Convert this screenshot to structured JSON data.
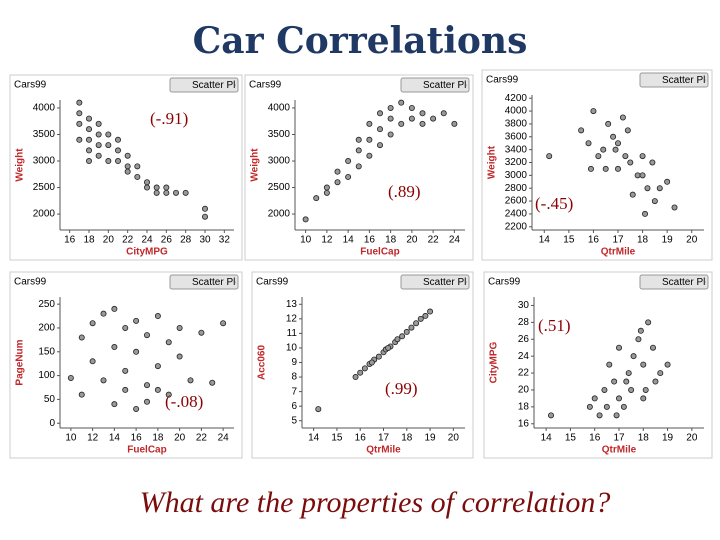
{
  "title": "Car Correlations",
  "question": "What are the properties of correlation?",
  "chart_data": [
    {
      "type": "scatter",
      "title": "Cars99",
      "control": "Scatter Plot",
      "xlabel": "CityMPG",
      "ylabel": "Weight",
      "annotation": "(-.91)",
      "x": [
        17,
        17,
        17,
        17,
        18,
        18,
        18,
        18,
        18,
        19,
        19,
        19,
        19,
        20,
        20,
        20,
        21,
        21,
        21,
        22,
        22,
        22,
        23,
        23,
        24,
        24,
        25,
        25,
        26,
        26,
        27,
        28,
        30,
        30
      ],
      "values": [
        4100,
        3900,
        3700,
        3400,
        3800,
        3600,
        3400,
        3200,
        3000,
        3700,
        3500,
        3300,
        3100,
        3500,
        3300,
        3000,
        3400,
        3200,
        3000,
        3100,
        2900,
        2800,
        2900,
        2700,
        2600,
        2500,
        2500,
        2400,
        2500,
        2400,
        2400,
        2400,
        2100,
        1950
      ],
      "xlim": [
        15,
        33
      ],
      "ylim": [
        1700,
        4150
      ],
      "xticks": [
        16,
        18,
        20,
        22,
        24,
        26,
        28,
        30,
        32
      ],
      "yticks": [
        2000,
        2500,
        3000,
        3500,
        4000
      ]
    },
    {
      "type": "scatter",
      "title": "Cars99",
      "control": "Scatter Plot",
      "xlabel": "FuelCap",
      "ylabel": "Weight",
      "annotation": "(.89)",
      "x": [
        10,
        11,
        12,
        12,
        13,
        13,
        14,
        14,
        15,
        15,
        15,
        16,
        16,
        16,
        17,
        17,
        17,
        18,
        18,
        18,
        19,
        19,
        20,
        20,
        21,
        21,
        22,
        23,
        24
      ],
      "values": [
        1900,
        2300,
        2500,
        2400,
        2600,
        2800,
        2700,
        3000,
        2900,
        3200,
        3400,
        3100,
        3400,
        3700,
        3300,
        3600,
        3900,
        3500,
        3800,
        4000,
        3700,
        4100,
        3800,
        4000,
        3900,
        3700,
        3800,
        3900,
        3700
      ],
      "xlim": [
        9,
        25
      ],
      "ylim": [
        1700,
        4150
      ],
      "xticks": [
        10,
        12,
        14,
        16,
        18,
        20,
        22,
        24
      ],
      "yticks": [
        2000,
        2500,
        3000,
        3500,
        4000
      ]
    },
    {
      "type": "scatter",
      "title": "Cars99",
      "control": "Scatter Plot",
      "xlabel": "QtrMile",
      "ylabel": "Weight",
      "annotation": "(-.45)",
      "x": [
        14.2,
        15.5,
        15.8,
        16.0,
        16.2,
        16.4,
        16.5,
        16.6,
        16.8,
        17.0,
        17.0,
        17.2,
        17.3,
        17.5,
        17.6,
        17.8,
        18.0,
        18.0,
        18.2,
        18.4,
        18.5,
        18.7,
        19.0,
        19.3,
        16.9,
        17.4,
        18.1,
        15.9
      ],
      "values": [
        3300,
        3700,
        3500,
        4000,
        3300,
        3400,
        3100,
        3800,
        3600,
        3500,
        3100,
        3900,
        3300,
        3200,
        2700,
        3000,
        3000,
        3300,
        2800,
        3200,
        2600,
        2800,
        2900,
        2500,
        3400,
        3700,
        2400,
        3100
      ],
      "xlim": [
        13.5,
        20.5
      ],
      "ylim": [
        2150,
        4250
      ],
      "xticks": [
        14,
        15,
        16,
        17,
        18,
        19,
        20
      ],
      "yticks": [
        2200,
        2400,
        2600,
        2800,
        3000,
        3200,
        3400,
        3600,
        3800,
        4000,
        4200
      ]
    },
    {
      "type": "scatter",
      "title": "Cars99",
      "control": "Scatter Plot",
      "xlabel": "FuelCap",
      "ylabel": "PageNum",
      "annotation": "(-.08)",
      "x": [
        10,
        11,
        11,
        12,
        12,
        13,
        13,
        14,
        14,
        14,
        15,
        15,
        15,
        16,
        16,
        16,
        17,
        17,
        17,
        18,
        18,
        18,
        19,
        19,
        20,
        20,
        21,
        22,
        23,
        24
      ],
      "values": [
        95,
        180,
        60,
        210,
        130,
        230,
        90,
        160,
        40,
        240,
        200,
        110,
        70,
        215,
        150,
        30,
        185,
        80,
        45,
        225,
        120,
        70,
        170,
        60,
        200,
        140,
        90,
        190,
        85,
        210
      ],
      "xlim": [
        9,
        25
      ],
      "ylim": [
        -10,
        265
      ],
      "xticks": [
        10,
        12,
        14,
        16,
        18,
        20,
        22,
        24
      ],
      "yticks": [
        0,
        50,
        100,
        150,
        200,
        250
      ]
    },
    {
      "type": "scatter",
      "title": "Cars99",
      "control": "Scatter Plot",
      "xlabel": "QtrMile",
      "ylabel": "Acc060",
      "annotation": "(.99)",
      "x": [
        14.2,
        15.8,
        16.0,
        16.2,
        16.4,
        16.6,
        16.8,
        17.0,
        17.1,
        17.3,
        17.5,
        17.6,
        17.8,
        18.0,
        18.2,
        18.4,
        18.6,
        18.8,
        19.0,
        16.5,
        17.2
      ],
      "values": [
        5.8,
        8.0,
        8.3,
        8.6,
        8.9,
        9.2,
        9.4,
        9.7,
        9.9,
        10.1,
        10.4,
        10.6,
        10.8,
        11.1,
        11.4,
        11.7,
        12.0,
        12.2,
        12.5,
        9.0,
        10.0
      ],
      "xlim": [
        13.5,
        20.5
      ],
      "ylim": [
        4.5,
        13.5
      ],
      "xticks": [
        14,
        15,
        16,
        17,
        18,
        19,
        20
      ],
      "yticks": [
        5,
        6,
        7,
        8,
        9,
        10,
        11,
        12,
        13
      ]
    },
    {
      "type": "scatter",
      "title": "Cars99",
      "control": "Scatter Plot",
      "xlabel": "QtrMile",
      "ylabel": "CityMPG",
      "annotation": "(.51)",
      "x": [
        14.2,
        15.8,
        16.0,
        16.2,
        16.4,
        16.5,
        16.6,
        16.8,
        17.0,
        17.0,
        17.2,
        17.4,
        17.5,
        17.6,
        17.8,
        18.0,
        18.0,
        18.2,
        18.4,
        18.5,
        18.7,
        19.0,
        16.9,
        17.3,
        18.1,
        17.9
      ],
      "values": [
        17,
        18,
        19,
        17,
        20,
        18,
        23,
        21,
        19,
        25,
        18,
        22,
        20,
        24,
        26,
        23,
        19,
        28,
        25,
        21,
        22,
        23,
        17,
        21,
        20,
        27
      ],
      "xlim": [
        13.5,
        20.5
      ],
      "ylim": [
        15.5,
        31
      ],
      "xticks": [
        14,
        15,
        16,
        17,
        18,
        19,
        20
      ],
      "yticks": [
        16,
        18,
        20,
        22,
        24,
        26,
        28,
        30
      ]
    }
  ]
}
